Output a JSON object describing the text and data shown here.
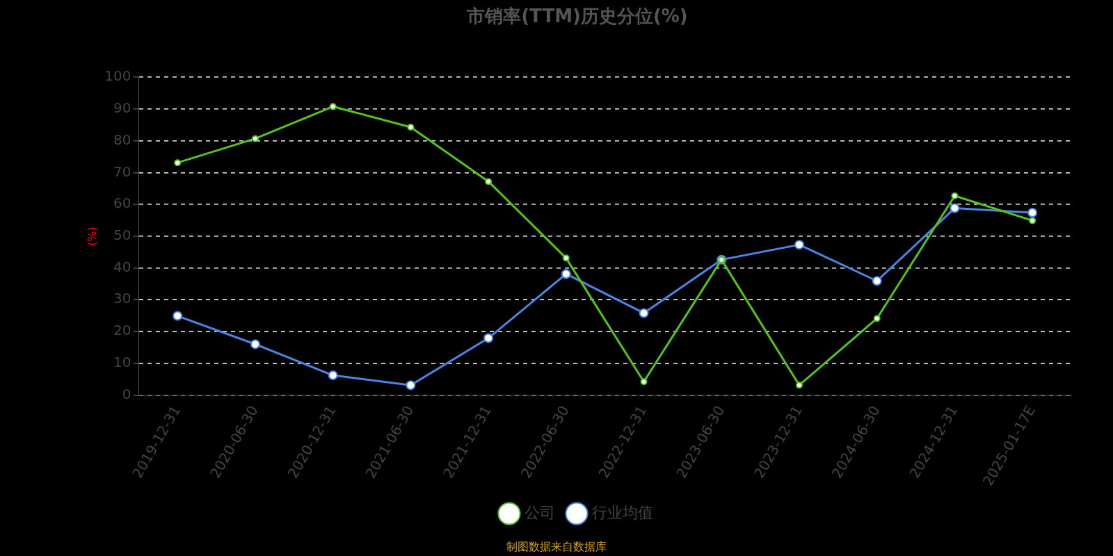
{
  "chart_data": {
    "type": "line",
    "title": "市销率(TTM)历史分位(%)",
    "ylabel": "(%)",
    "categories": [
      "2019-12-31",
      "2020-06-30",
      "2020-12-31",
      "2021-06-30",
      "2021-12-31",
      "2022-06-30",
      "2022-12-31",
      "2023-06-30",
      "2023-12-31",
      "2024-06-30",
      "2024-12-31",
      "2025-01-17E"
    ],
    "series": [
      {
        "name": "公司",
        "color": "#52c41a",
        "values": [
          73.1,
          80.7,
          90.8,
          84.3,
          67.2,
          43.1,
          4.2,
          42.6,
          3.1,
          24.1,
          62.7,
          54.9
        ]
      },
      {
        "name": "行业均值",
        "color": "#4a86e8",
        "values": [
          24.9,
          16.0,
          6.2,
          3.1,
          17.9,
          38.1,
          25.8,
          42.6,
          47.3,
          35.9,
          58.8,
          57.4
        ]
      }
    ],
    "ylim": [
      0,
      100
    ],
    "yticks": [
      0,
      10,
      20,
      30,
      40,
      50,
      60,
      70,
      80,
      90,
      100
    ],
    "grid": "y",
    "legend": "bottom",
    "marker": "circle",
    "line_style": "solid",
    "annotations": [
      "制图数据来自数据库"
    ]
  }
}
